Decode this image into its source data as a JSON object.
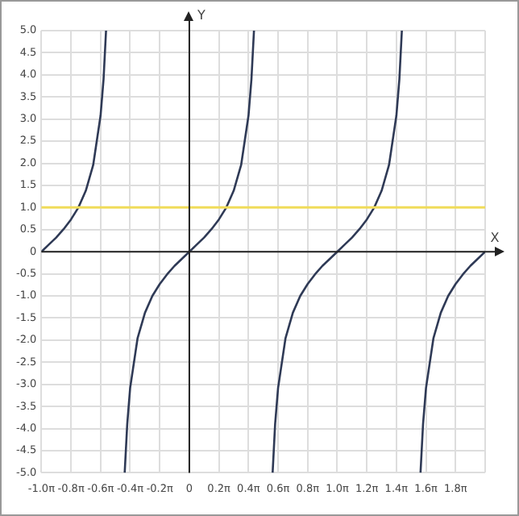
{
  "chart_data": {
    "type": "line",
    "xlabel": "X",
    "ylabel": "Y",
    "x": [
      -3.142,
      -2.985,
      -2.827,
      -2.67,
      -2.513,
      -2.356,
      -2.199,
      -2.042,
      -1.885,
      -1.822,
      -1.769,
      -1.571,
      -1.373,
      -1.319,
      -1.257,
      -1.1,
      -0.942,
      -0.785,
      -0.628,
      -0.471,
      -0.314,
      -0.157,
      0,
      0.157,
      0.314,
      0.471,
      0.628,
      0.785,
      0.942,
      1.1,
      1.257,
      1.319,
      1.373,
      1.571,
      1.769,
      1.822,
      1.885,
      2.042,
      2.199,
      2.356,
      2.513,
      2.67,
      2.827,
      2.985,
      3.142,
      3.299,
      3.456,
      3.613,
      3.77,
      3.927,
      4.084,
      4.241,
      4.398,
      4.461,
      4.514,
      4.712,
      4.91,
      4.964,
      5.027,
      5.184,
      5.341,
      5.498,
      5.655,
      5.812,
      5.969,
      6.126,
      6.283
    ],
    "series": [
      {
        "color": "#2f3a56",
        "values": [
          0,
          0.16,
          0.32,
          0.51,
          0.73,
          1.0,
          1.38,
          1.96,
          3.08,
          3.9,
          5.0,
          null,
          -5.0,
          -3.9,
          -3.08,
          -1.96,
          -1.38,
          -1.0,
          -0.73,
          -0.51,
          -0.32,
          -0.16,
          0,
          0.16,
          0.32,
          0.51,
          0.73,
          1.0,
          1.38,
          1.96,
          3.08,
          3.9,
          5.0,
          null,
          -5.0,
          -3.9,
          -3.08,
          -1.96,
          -1.38,
          -1.0,
          -0.73,
          -0.51,
          -0.32,
          -0.16,
          0,
          0.16,
          0.32,
          0.51,
          0.73,
          1.0,
          1.38,
          1.96,
          3.08,
          3.9,
          5.0,
          null,
          -5.0,
          -3.9,
          -3.08,
          -1.96,
          -1.38,
          -1.0,
          -0.73,
          -0.51,
          -0.32,
          -0.16,
          0
        ]
      }
    ],
    "xlim": [
      -3.142,
      6.283
    ],
    "xticks": [
      {
        "value": -3.142,
        "label": "-1.0π"
      },
      {
        "value": -2.513,
        "label": "-0.8π"
      },
      {
        "value": -1.885,
        "label": "-0.6π"
      },
      {
        "value": -1.257,
        "label": "-0.4π"
      },
      {
        "value": -0.628,
        "label": "-0.2π"
      },
      0,
      {
        "value": 0.628,
        "label": "0.2π"
      },
      {
        "value": 1.257,
        "label": "0.4π"
      },
      {
        "value": 1.885,
        "label": "0.6π"
      },
      {
        "value": 2.513,
        "label": "0.8π"
      },
      {
        "value": 3.142,
        "label": "1.0π"
      },
      {
        "value": 3.77,
        "label": "1.2π"
      },
      {
        "value": 4.398,
        "label": "1.4π"
      },
      {
        "value": 5.027,
        "label": "1.6π"
      },
      {
        "value": 5.655,
        "label": "1.8π"
      },
      {
        "value": 6.283,
        "label": null
      }
    ],
    "ylim": [
      -5,
      5
    ],
    "yticks": [
      {
        "value": -5,
        "label": "-5.0"
      },
      -4.5,
      {
        "value": -4,
        "label": "-4.0"
      },
      -3.5,
      {
        "value": -3,
        "label": "-3.0"
      },
      -2.5,
      {
        "value": -2,
        "label": "-2.0"
      },
      -1.5,
      {
        "value": -1,
        "label": "-1.0"
      },
      -0.5,
      0,
      0.5,
      {
        "value": 1,
        "label": "1.0"
      },
      1.5,
      {
        "value": 2,
        "label": "2.0"
      },
      2.5,
      {
        "value": 3,
        "label": "3.0"
      },
      3.5,
      {
        "value": 4,
        "label": "4.0"
      },
      4.5,
      {
        "value": 5,
        "label": "5.0"
      }
    ],
    "ref_lines": [
      {
        "axis": "y",
        "value": 1,
        "color": "#f0dc5a"
      }
    ],
    "grid": true,
    "legend": false,
    "marker": "none",
    "line_style": "solid"
  }
}
